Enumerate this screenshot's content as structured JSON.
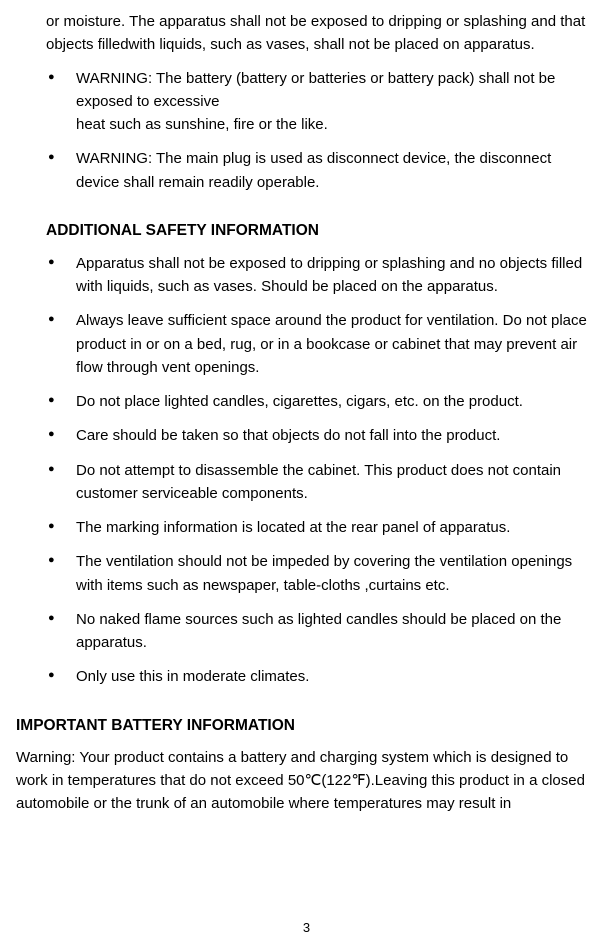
{
  "continued": "or moisture. The apparatus shall not be exposed to dripping or splashing and that objects filledwith liquids, such as vases, shall not be placed on apparatus.",
  "topList": [
    "WARNING: The battery (battery or batteries or battery pack) shall not be exposed to excessive\nheat such as sunshine, fire or the like.",
    "WARNING: The main plug is used as disconnect device, the disconnect device shall remain readily operable."
  ],
  "heading1": "ADDITIONAL SAFETY INFORMATION",
  "list1": [
    "Apparatus shall not be exposed to dripping or splashing and no objects filled with liquids, such as vases. Should be placed on the apparatus.",
    "Always leave sufficient space around the product for ventilation. Do not place product in or on a bed, rug, or in a bookcase or cabinet that may prevent air flow through vent openings.",
    "Do not place lighted candles, cigarettes, cigars, etc. on the product.",
    "Care should be taken so that objects do not fall into the product.",
    "Do not attempt to disassemble the cabinet. This product does not contain customer serviceable components.",
    "The marking information is located at the rear panel of apparatus.",
    "The ventilation should not be impeded by covering the ventilation openings with items such as newspaper, table-cloths ,curtains etc.",
    "No naked flame sources such as lighted candles should be placed on the apparatus.",
    "Only use this in moderate climates."
  ],
  "heading2": "IMPORTANT BATTERY INFORMATION",
  "body2": "Warning: Your product contains a battery and charging system which is designed to work in temperatures that do not exceed 50℃(122℉).Leaving this product in a closed automobile or the trunk of an automobile where temperatures may result in",
  "pageNumber": "3"
}
